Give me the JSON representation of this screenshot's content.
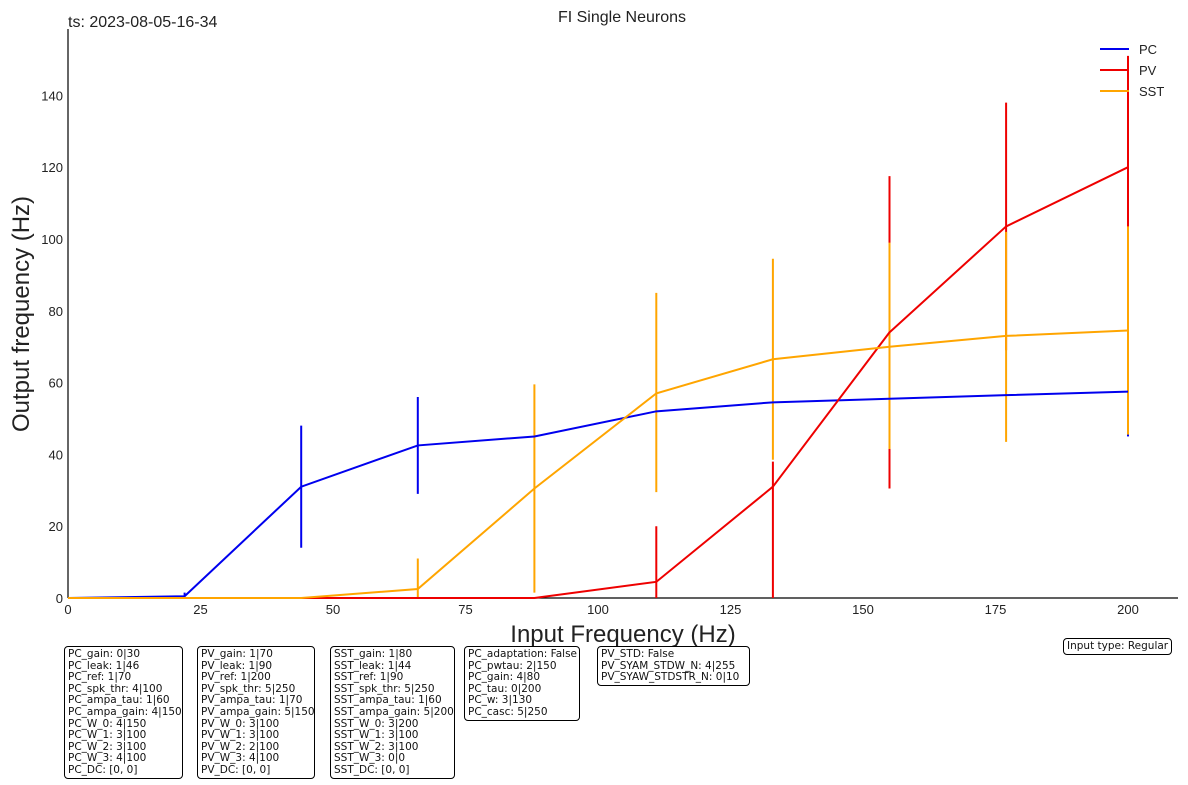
{
  "timestamp": "ts: 2023-08-05-16-34",
  "input_type": "Input type: Regular",
  "chart_data": {
    "type": "line",
    "title": "FI Single Neurons",
    "xlabel": "Input Frequency (Hz)",
    "ylabel": "Output frequency (Hz)",
    "xlim": [
      0,
      210
    ],
    "ylim": [
      0,
      158
    ],
    "xticks": [
      0,
      25,
      50,
      75,
      100,
      125,
      150,
      175,
      200
    ],
    "yticks": [
      0,
      20,
      40,
      60,
      80,
      100,
      120,
      140
    ],
    "legend_position": "top-right",
    "grid": false,
    "x": [
      0,
      22,
      44,
      66,
      88,
      111,
      133,
      155,
      177,
      200
    ],
    "series": [
      {
        "name": "PC",
        "color": "#0000ee",
        "values": [
          0,
          0.5,
          31,
          42.5,
          45,
          52,
          54.5,
          55.5,
          56.5,
          57.5
        ],
        "err_low": [
          0,
          0.5,
          14,
          29,
          45,
          52,
          54.5,
          55.5,
          56.5,
          45
        ],
        "err_high": [
          0,
          1.5,
          48,
          56,
          45,
          52,
          54.5,
          55.5,
          56.5,
          57.5
        ]
      },
      {
        "name": "PV",
        "color": "#ee0000",
        "values": [
          0,
          0,
          0,
          0,
          0,
          4.5,
          31,
          74,
          103.5,
          120
        ],
        "err_low": [
          0,
          0,
          0,
          0,
          0,
          0,
          0,
          30.5,
          69,
          89
        ],
        "err_high": [
          0,
          0,
          0,
          0,
          0,
          20,
          38,
          117.5,
          138,
          151
        ]
      },
      {
        "name": "SST",
        "color": "#ffa500",
        "values": [
          0,
          0,
          0,
          2.5,
          30.5,
          57,
          66.5,
          70,
          73,
          74.5
        ],
        "err_low": [
          0,
          0,
          0,
          0,
          1.5,
          29.5,
          38.5,
          41.5,
          43.5,
          45.5
        ],
        "err_high": [
          0,
          0,
          0,
          11,
          59.5,
          85,
          94.5,
          99,
          102,
          103.5
        ]
      }
    ]
  },
  "param_boxes": [
    [
      "PC_gain: 0|30",
      "PC_leak: 1|46",
      "PC_ref: 1|70",
      "PC_spk_thr: 4|100",
      "PC_ampa_tau: 1|60",
      "PC_ampa_gain: 4|150",
      "PC_W_0: 4|150",
      "PC_W_1: 3|100",
      "PC_W_2: 3|100",
      "PC_W_3: 4|100",
      "PC_DC: [0, 0]"
    ],
    [
      "PV_gain: 1|70",
      "PV_leak: 1|90",
      "PV_ref: 1|200",
      "PV_spk_thr: 5|250",
      "PV_ampa_tau: 1|70",
      "PV_ampa_gain: 5|150",
      "PV_W_0: 3|100",
      "PV_W_1: 3|100",
      "PV_W_2: 2|100",
      "PV_W_3: 4|100",
      "PV_DC: [0, 0]"
    ],
    [
      "SST_gain: 1|80",
      "SST_leak: 1|44",
      "SST_ref: 1|90",
      "SST_spk_thr: 5|250",
      "SST_ampa_tau: 1|60",
      "SST_ampa_gain: 5|200",
      "SST_W_0: 3|200",
      "SST_W_1: 3|100",
      "SST_W_2: 3|100",
      "SST_W_3: 0|0",
      "SST_DC: [0, 0]"
    ],
    [
      "PC_adaptation: False",
      "PC_pwtau: 2|150",
      "PC_gain: 4|80",
      "PC_tau: 0|200",
      "PC_w: 3|130",
      "PC_casc: 5|250"
    ],
    [
      "PV_STD: False",
      "PV_SYAM_STDW_N: 4|255",
      "PV_SYAW_STDSTR_N: 0|10"
    ]
  ]
}
